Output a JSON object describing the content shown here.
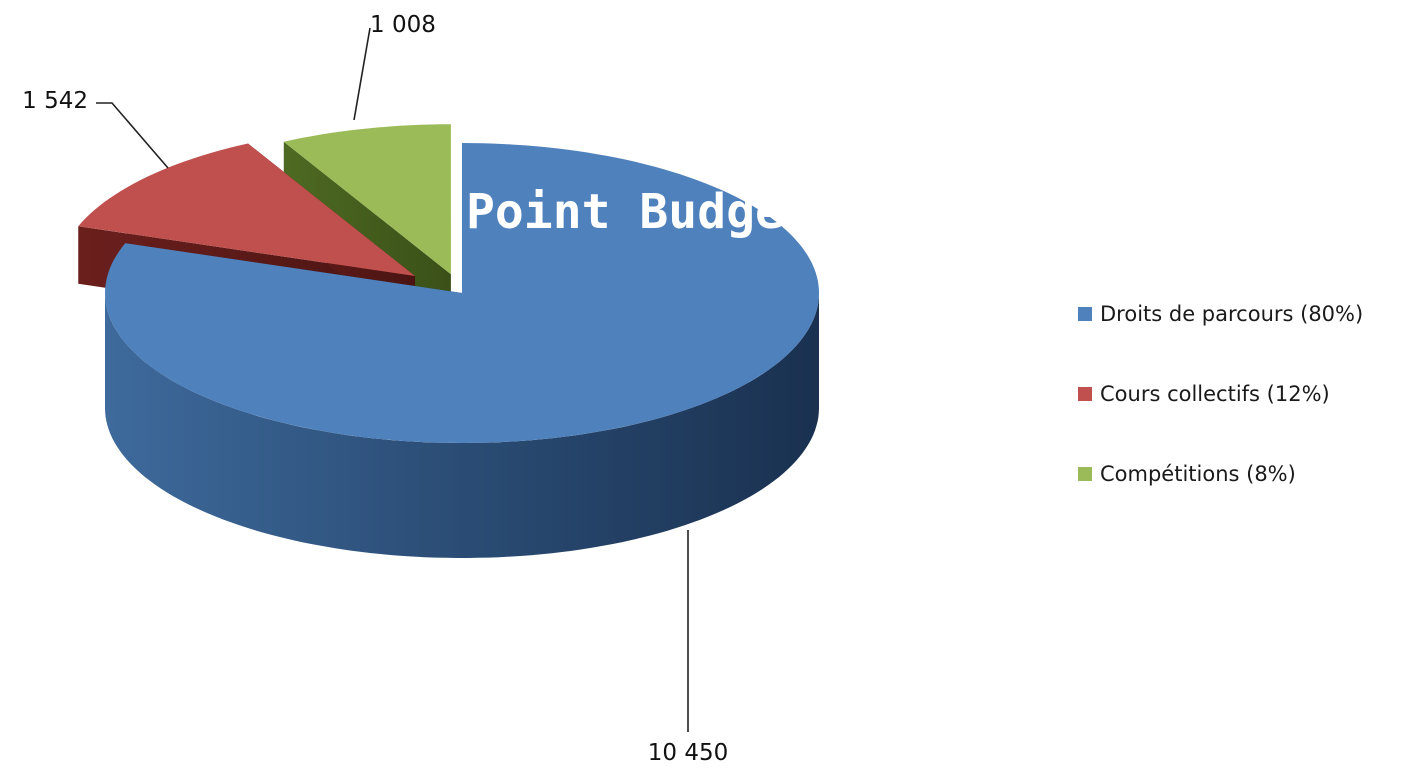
{
  "chart_data": {
    "type": "pie",
    "title": "Point Budget",
    "slices": [
      {
        "name": "Droits de parcours (80%)",
        "value": 10450,
        "label": "10 450",
        "color": "#4F81BD"
      },
      {
        "name": "Cours collectifs (12%)",
        "value": 1542,
        "label": "1 542",
        "color": "#C0504D"
      },
      {
        "name": "Compétitions (8%)",
        "value": 1008,
        "label": "1 008",
        "color": "#9BBB59"
      }
    ],
    "legend_position": "right",
    "style": "3d-exploded"
  },
  "legend": {
    "items": [
      "Droits de parcours (80%)",
      "Cours collectifs (12%)",
      "Compétitions (8%)"
    ]
  }
}
